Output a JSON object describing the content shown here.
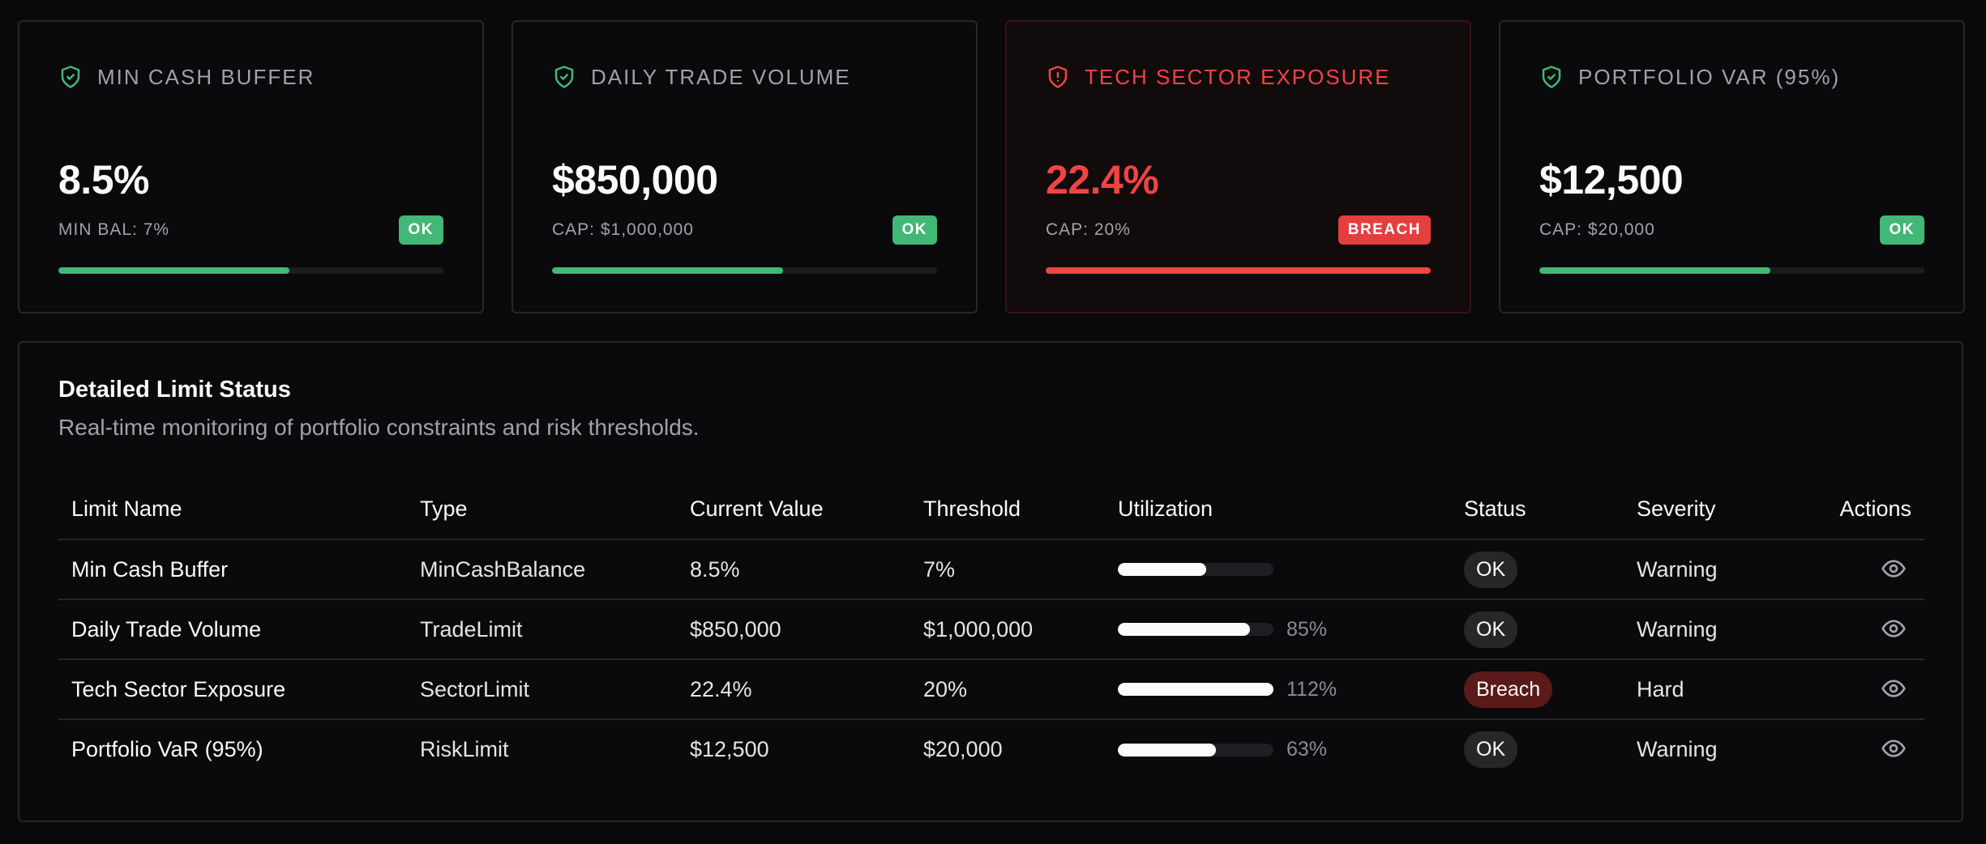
{
  "colors": {
    "ok": "#41b876",
    "breach": "#ef4444",
    "muted": "#a1a1aa",
    "background": "#09090b"
  },
  "cards": [
    {
      "title": "MIN CASH BUFFER",
      "icon": "shield-check-icon",
      "value": "8.5%",
      "subtitle": "MIN BAL: 7%",
      "status": "OK",
      "progress": 0.6,
      "state": "ok"
    },
    {
      "title": "DAILY TRADE VOLUME",
      "icon": "shield-check-icon",
      "value": "$850,000",
      "subtitle": "CAP: $1,000,000",
      "status": "OK",
      "progress": 0.6,
      "state": "ok"
    },
    {
      "title": "TECH SECTOR EXPOSURE",
      "icon": "shield-alert-icon",
      "value": "22.4%",
      "subtitle": "CAP: 20%",
      "status": "BREACH",
      "progress": 1.0,
      "state": "breach"
    },
    {
      "title": "PORTFOLIO VAR (95%)",
      "icon": "shield-check-icon",
      "value": "$12,500",
      "subtitle": "CAP: $20,000",
      "status": "OK",
      "progress": 0.6,
      "state": "ok"
    }
  ],
  "panel": {
    "title": "Detailed Limit Status",
    "description": "Real-time monitoring of portfolio constraints and risk thresholds.",
    "columns": [
      "Limit Name",
      "Type",
      "Current Value",
      "Threshold",
      "Utilization",
      "Status",
      "Severity",
      "Actions"
    ],
    "rows": [
      {
        "name": "Min Cash Buffer",
        "type": "MinCashBalance",
        "current": "8.5%",
        "threshold": "7%",
        "utilization": 0.57,
        "utilization_label": "",
        "status": "OK",
        "status_state": "ok",
        "severity": "Warning",
        "action_icon": "eye-icon"
      },
      {
        "name": "Daily Trade Volume",
        "type": "TradeLimit",
        "current": "$850,000",
        "threshold": "$1,000,000",
        "utilization": 0.85,
        "utilization_label": "85%",
        "status": "OK",
        "status_state": "ok",
        "severity": "Warning",
        "action_icon": "eye-icon"
      },
      {
        "name": "Tech Sector Exposure",
        "type": "SectorLimit",
        "current": "22.4%",
        "threshold": "20%",
        "utilization": 1.0,
        "utilization_label": "112%",
        "status": "Breach",
        "status_state": "breach",
        "severity": "Hard",
        "action_icon": "eye-icon"
      },
      {
        "name": "Portfolio VaR (95%)",
        "type": "RiskLimit",
        "current": "$12,500",
        "threshold": "$20,000",
        "utilization": 0.63,
        "utilization_label": "63%",
        "status": "OK",
        "status_state": "ok",
        "severity": "Warning",
        "action_icon": "eye-icon"
      }
    ]
  }
}
